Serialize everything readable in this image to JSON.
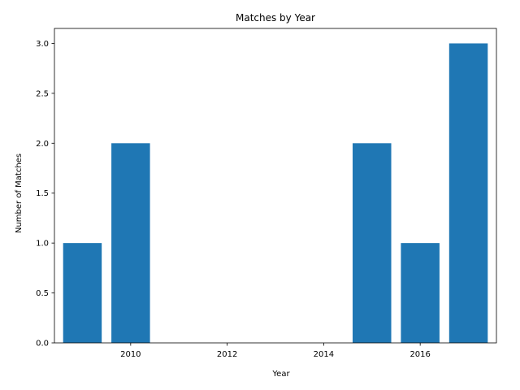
{
  "chart_data": {
    "type": "bar",
    "title": "Matches by Year",
    "xlabel": "Year",
    "ylabel": "Number of Matches",
    "x": [
      2009,
      2010,
      2015,
      2016,
      2017
    ],
    "values": [
      1,
      2,
      2,
      1,
      3
    ],
    "bar_width": 0.8,
    "xlim": [
      2008.42,
      2017.58
    ],
    "ylim": [
      0,
      3.15
    ],
    "xticks": [
      2010,
      2012,
      2014,
      2016
    ],
    "xtick_labels": [
      "2010",
      "2012",
      "2014",
      "2016"
    ],
    "yticks": [
      0,
      0.5,
      1,
      1.5,
      2,
      2.5,
      3
    ],
    "ytick_labels": [
      "0.0",
      "0.5",
      "1.0",
      "1.5",
      "2.0",
      "2.5",
      "3.0"
    ],
    "bar_color": "#1f77b4",
    "grid": false,
    "legend": "none"
  }
}
